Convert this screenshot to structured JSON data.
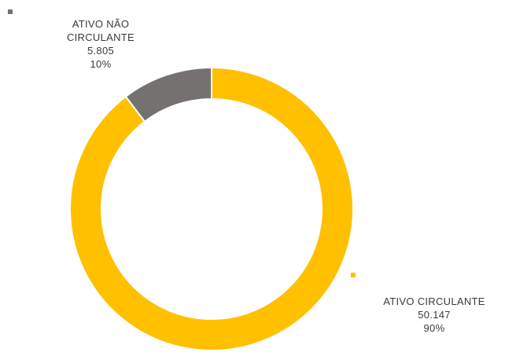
{
  "chart_data": {
    "type": "pie",
    "donut": true,
    "slices": [
      {
        "name": "ATIVO CIRCULANTE",
        "name_lines": [
          "ATIVO CIRCULANTE"
        ],
        "value_label": "50.147",
        "value": 50147,
        "percent_label": "90%",
        "percent": 90,
        "color": "#FFC000"
      },
      {
        "name": "ATIVO NÃO CIRCULANTE",
        "name_lines": [
          "ATIVO NÃO",
          "CIRCULANTE"
        ],
        "value_label": "5.805",
        "value": 5805,
        "percent_label": "10%",
        "percent": 10,
        "color": "#767171"
      }
    ],
    "start": "12 o'clock",
    "direction": "clockwise"
  }
}
